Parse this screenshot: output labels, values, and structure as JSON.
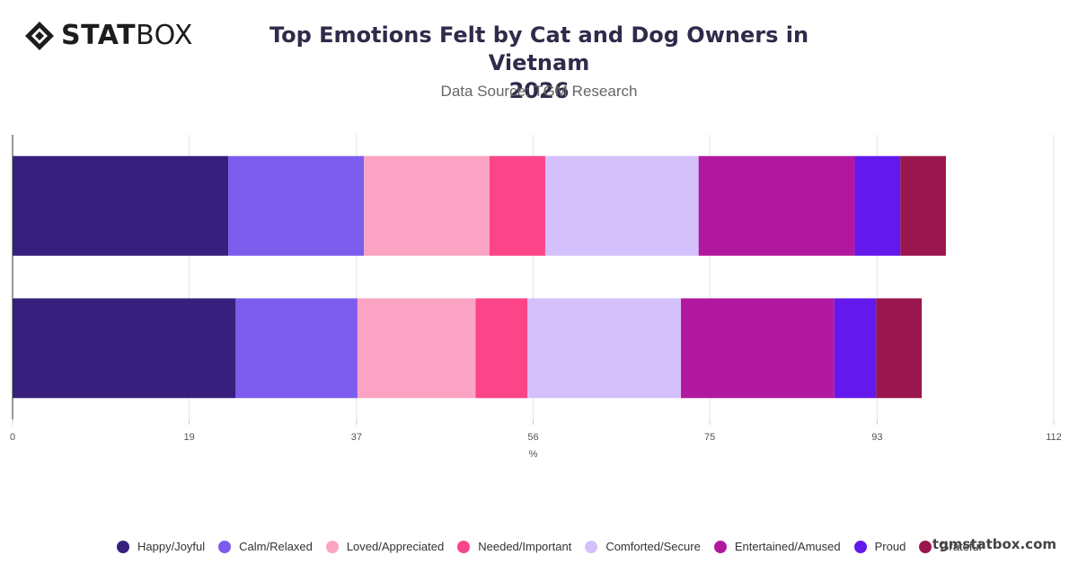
{
  "brand": {
    "logo_text_bold": "STAT",
    "logo_text_light": "BOX",
    "watermark": "tgmstatbox.com"
  },
  "header": {
    "title_line1": "Top Emotions Felt by Cat and Dog Owners in Vietnam",
    "title_line2": "2026",
    "subtitle": "Data Source: TGM Research"
  },
  "chart_data": {
    "type": "bar",
    "orientation": "horizontal",
    "stacked": true,
    "title": "Top Emotions Felt by Cat and Dog Owners in Vietnam 2026",
    "subtitle": "Data Source: TGM Research",
    "xlabel": "%",
    "ylabel": "",
    "xlim": [
      0,
      112
    ],
    "x_ticks": [
      "0",
      "19",
      "37",
      "56",
      "75",
      "93",
      "112"
    ],
    "categories": [
      "",
      ""
    ],
    "grid": "vertical",
    "legend_position": "bottom",
    "series": [
      {
        "name": "Happy/Joyful",
        "color": "#371f7e",
        "values": [
          23.2,
          24.0
        ]
      },
      {
        "name": "Calm/Relaxed",
        "color": "#7b5ced",
        "values": [
          14.6,
          13.1
        ]
      },
      {
        "name": "Loved/Appreciated",
        "color": "#fba3c2",
        "values": [
          13.5,
          12.7
        ]
      },
      {
        "name": "Needed/Important",
        "color": "#fc4488",
        "values": [
          6.0,
          5.6
        ]
      },
      {
        "name": "Comforted/Secure",
        "color": "#d4c0fa",
        "values": [
          16.5,
          16.5
        ]
      },
      {
        "name": "Entertained/Amused",
        "color": "#b2189f",
        "values": [
          16.8,
          16.5
        ]
      },
      {
        "name": "Proud",
        "color": "#6318ec",
        "values": [
          4.9,
          4.5
        ]
      },
      {
        "name": "Grateful",
        "color": "#9a164f",
        "values": [
          4.9,
          4.9
        ]
      }
    ]
  }
}
